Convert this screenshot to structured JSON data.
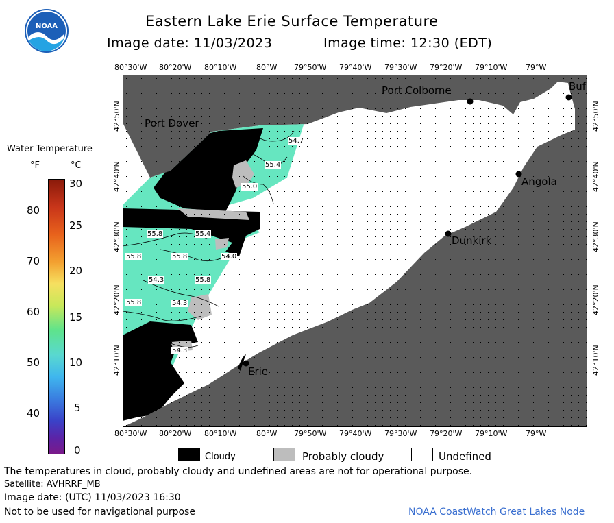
{
  "header": {
    "title": "Eastern Lake Erie Surface Temperature",
    "image_date": "Image date: 11/03/2023",
    "image_time": "Image time: 12:30 (EDT)"
  },
  "logo": {
    "text": "NOAA"
  },
  "colorbar": {
    "title": "Water Temperature",
    "unit_f": "°F",
    "unit_c": "°C",
    "f_ticks": [
      "80",
      "70",
      "60",
      "50",
      "40"
    ],
    "c_ticks": [
      "30",
      "25",
      "20",
      "15",
      "10",
      "5",
      "0"
    ]
  },
  "map": {
    "lon_ticks": [
      "80°30'W",
      "80°20'W",
      "80°10'W",
      "80°W",
      "79°50'W",
      "79°40'W",
      "79°30'W",
      "79°20'W",
      "79°10'W",
      "79°W"
    ],
    "lat_ticks": [
      "42°50'N",
      "42°40'N",
      "42°30'N",
      "42°20'N",
      "42°10'N"
    ],
    "cities": [
      "Port Colborne",
      "Buf",
      "Port Dover",
      "Angola",
      "Dunkirk",
      "Erie"
    ],
    "contour_labels": [
      "54.7",
      "55.4",
      "55.0",
      "55.8",
      "55.4",
      "54.0",
      "55.8",
      "55.8",
      "54.3",
      "55.8",
      "55.8",
      "54.3",
      "54.3"
    ],
    "colors": {
      "land": "#5a5a5a",
      "water_undefined": "#ffffff",
      "cloud": "#000000",
      "probably_cloudy": "#bdbdbd",
      "temp_water": "#66e6c0"
    }
  },
  "legend": {
    "cloudy": "Cloudy",
    "probably_cloudy": "Probably cloudy",
    "undefined": "Undefined"
  },
  "footer": {
    "line1": "The temperatures in cloud, probably cloudy and undefined areas are not for operational purpose.",
    "line2": "Satellite: AVHRRF_MB",
    "line3": "Image date: (UTC) 11/03/2023  16:30",
    "line4": "Not to be used for navigational purpose",
    "credit": "NOAA CoastWatch Great Lakes Node"
  }
}
